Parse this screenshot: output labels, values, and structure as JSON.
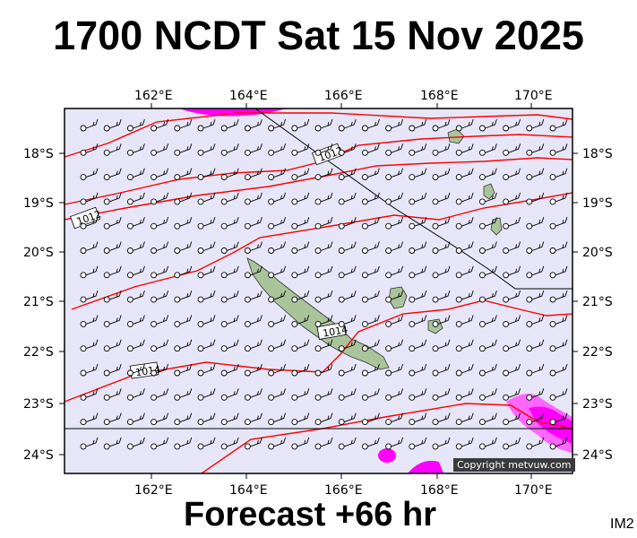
{
  "title": "1700 NCDT Sat 15 Nov 2025",
  "footer": "Forecast +66 hr",
  "tag": "IM2",
  "copyright": "Copyright metvuw.com",
  "map": {
    "lon_labels": [
      "162°E",
      "164°E",
      "166°E",
      "168°E",
      "170°E"
    ],
    "lat_labels": [
      "18°S",
      "19°S",
      "20°S",
      "21°S",
      "22°S",
      "23°S",
      "24°S"
    ],
    "isobar_labels": [
      "1012",
      "1012",
      "1014",
      "1014"
    ],
    "colors": {
      "sea": "#e6e6f8",
      "isobar": "#ff0000",
      "rain_magenta": "#ff00ff",
      "rain_pink": "#ff66ff",
      "land": "#a9c49a",
      "wind": "#000000"
    }
  }
}
